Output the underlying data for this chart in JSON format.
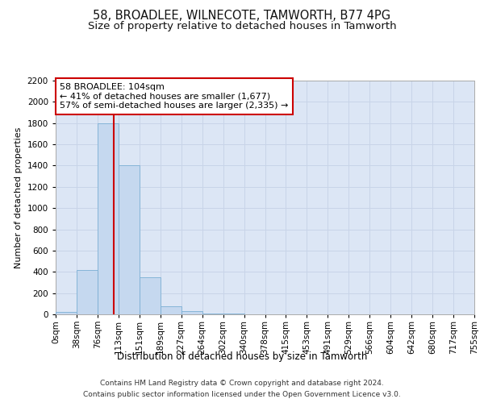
{
  "title1": "58, BROADLEE, WILNECOTE, TAMWORTH, B77 4PG",
  "title2": "Size of property relative to detached houses in Tamworth",
  "xlabel": "Distribution of detached houses by size in Tamworth",
  "ylabel": "Number of detached properties",
  "bar_values": [
    20,
    420,
    1800,
    1400,
    350,
    75,
    30,
    10,
    5,
    2,
    1,
    0,
    0,
    0,
    0,
    0,
    0,
    0,
    0,
    0
  ],
  "bin_labels": [
    "0sqm",
    "38sqm",
    "76sqm",
    "113sqm",
    "151sqm",
    "189sqm",
    "227sqm",
    "264sqm",
    "302sqm",
    "340sqm",
    "378sqm",
    "415sqm",
    "453sqm",
    "491sqm",
    "529sqm",
    "566sqm",
    "604sqm",
    "642sqm",
    "680sqm",
    "717sqm",
    "755sqm"
  ],
  "bar_color": "#c5d8ef",
  "bar_edge_color": "#7bafd4",
  "vline_color": "#cc0000",
  "annotation_text": "58 BROADLEE: 104sqm\n← 41% of detached houses are smaller (1,677)\n57% of semi-detached houses are larger (2,335) →",
  "annotation_box_facecolor": "#ffffff",
  "annotation_box_edgecolor": "#cc0000",
  "ylim": [
    0,
    2200
  ],
  "yticks": [
    0,
    200,
    400,
    600,
    800,
    1000,
    1200,
    1400,
    1600,
    1800,
    2000,
    2200
  ],
  "grid_color": "#c8d4e8",
  "bg_color": "#dce6f5",
  "footer_line1": "Contains HM Land Registry data © Crown copyright and database right 2024.",
  "footer_line2": "Contains public sector information licensed under the Open Government Licence v3.0.",
  "title1_fontsize": 10.5,
  "title2_fontsize": 9.5,
  "xlabel_fontsize": 8.5,
  "ylabel_fontsize": 8,
  "tick_fontsize": 7.5,
  "annotation_fontsize": 8,
  "footer_fontsize": 6.5
}
